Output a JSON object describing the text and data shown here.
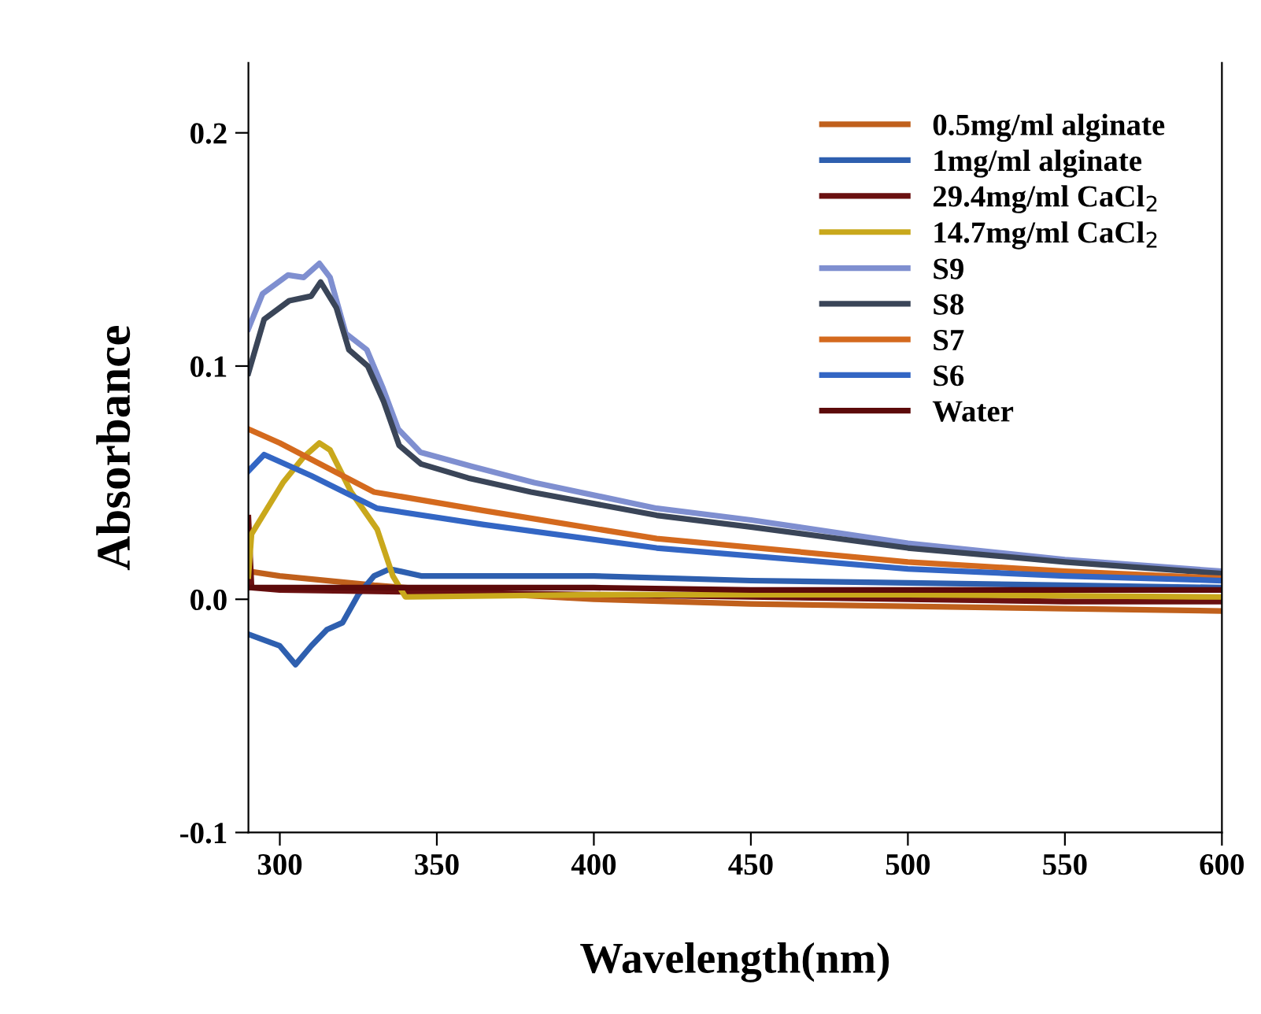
{
  "chart_data": {
    "type": "line",
    "xlabel": "Wavelength(nm)",
    "ylabel": "Absorbance",
    "xlim": [
      290,
      600
    ],
    "xticks": [
      300,
      350,
      400,
      450,
      500,
      550,
      600
    ],
    "ylim": [
      -0.1,
      0.23
    ],
    "yticks": [
      -0.1,
      {
        "value": 0.0,
        "label": "0.0"
      },
      0.1,
      0.2
    ],
    "grid": false,
    "legend": "top right",
    "marker": "none",
    "line_style": "solid",
    "series": [
      {
        "name": "0.5mg/ml alginate",
        "color": "#c0601c",
        "x": [
          290,
          300,
          330,
          360,
          400,
          450,
          500,
          550,
          600
        ],
        "values": [
          0.012,
          0.01,
          0.006,
          0.003,
          0.0,
          -0.002,
          -0.003,
          -0.004,
          -0.005
        ]
      },
      {
        "name": "1mg/ml alginate",
        "color": "#2e5faf",
        "x": [
          290,
          300,
          305,
          310,
          315,
          320,
          325,
          330,
          335,
          345,
          400,
          450,
          500,
          550,
          600
        ],
        "values": [
          -0.015,
          -0.02,
          -0.028,
          -0.02,
          -0.013,
          -0.01,
          0.002,
          0.01,
          0.013,
          0.01,
          0.01,
          0.008,
          0.007,
          0.006,
          0.005
        ]
      },
      {
        "name": "29.4mg/ml CaCl$_{2}$",
        "color": "#6a1010",
        "x": [
          290,
          291,
          300,
          350,
          400,
          450,
          500,
          550,
          600
        ],
        "values": [
          0.035,
          0.005,
          0.004,
          0.003,
          0.002,
          0.001,
          0.0,
          -0.001,
          -0.001
        ]
      },
      {
        "name": "14.7mg/ml CaCl$_{2}$",
        "color": "#c9a81c",
        "x": [
          290,
          291,
          301,
          307.6,
          312.6,
          316,
          322.7,
          331,
          336,
          340,
          400,
          500,
          600
        ],
        "values": [
          0.01,
          0.028,
          0.05,
          0.061,
          0.067,
          0.064,
          0.046,
          0.03,
          0.01,
          0.001,
          0.002,
          0.002,
          0.001
        ]
      },
      {
        "name": "S9",
        "color": "#7f8fd0",
        "x": [
          290,
          294.5,
          302.6,
          307.6,
          312.6,
          316,
          321,
          327.7,
          332.7,
          337.7,
          344.8,
          361,
          381,
          420,
          450,
          500,
          550,
          600
        ],
        "values": [
          0.116,
          0.131,
          0.139,
          0.138,
          0.144,
          0.138,
          0.114,
          0.107,
          0.091,
          0.073,
          0.063,
          0.057,
          0.05,
          0.039,
          0.034,
          0.024,
          0.017,
          0.012
        ]
      },
      {
        "name": "S8",
        "color": "#3a4558",
        "x": [
          290,
          295,
          303,
          310,
          313,
          318,
          322,
          328,
          333,
          338,
          345,
          360,
          380,
          420,
          450,
          500,
          550,
          600
        ],
        "values": [
          0.097,
          0.12,
          0.128,
          0.13,
          0.136,
          0.125,
          0.107,
          0.1,
          0.085,
          0.066,
          0.058,
          0.052,
          0.046,
          0.036,
          0.031,
          0.022,
          0.016,
          0.011
        ]
      },
      {
        "name": "S7",
        "color": "#d46a1e",
        "x": [
          290,
          300,
          330,
          365,
          420,
          500,
          550,
          600
        ],
        "values": [
          0.073,
          0.067,
          0.046,
          0.038,
          0.026,
          0.016,
          0.012,
          0.009
        ]
      },
      {
        "name": "S6",
        "color": "#3366c4",
        "x": [
          290,
          295,
          310,
          331,
          365,
          420,
          500,
          550,
          600
        ],
        "values": [
          0.055,
          0.062,
          0.053,
          0.039,
          0.032,
          0.022,
          0.013,
          0.01,
          0.008
        ]
      },
      {
        "name": "Water",
        "color": "#5c0a0a",
        "x": [
          290,
          350,
          400,
          450,
          500,
          550,
          600
        ],
        "values": [
          0.005,
          0.005,
          0.005,
          0.004,
          0.004,
          0.004,
          0.004
        ]
      }
    ]
  }
}
